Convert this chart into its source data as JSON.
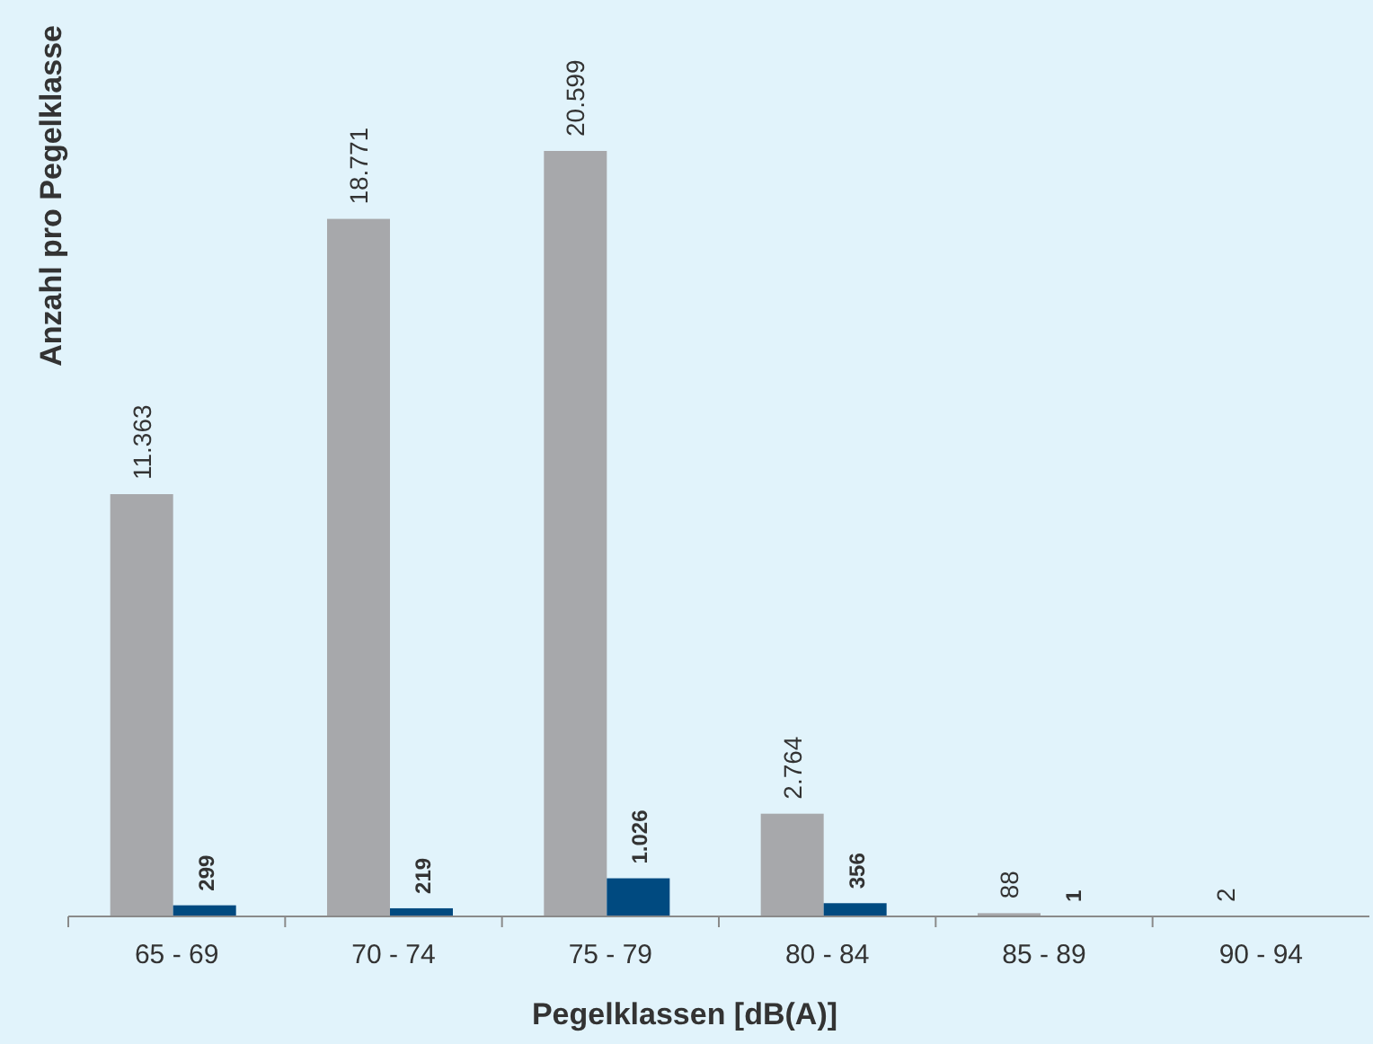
{
  "chart_data": {
    "type": "bar",
    "xlabel": "Pegelklassen [dB(A)]",
    "ylabel": "Anzahl pro Pegelklasse",
    "categories": [
      "65 - 69",
      "70 - 74",
      "75 - 79",
      "80 - 84",
      "85 - 89",
      "90 - 94"
    ],
    "series": [
      {
        "color": "#a7a8ab",
        "values": [
          11363,
          18771,
          20599,
          2764,
          88,
          2
        ],
        "value_labels": [
          "11.363",
          "18.771",
          "20.599",
          "2.764",
          "88",
          "2"
        ]
      },
      {
        "color": "#004a80",
        "values": [
          299,
          219,
          1026,
          356,
          1,
          null
        ],
        "value_labels": [
          "299",
          "219",
          "1.026",
          "356",
          "1",
          null
        ]
      }
    ]
  }
}
